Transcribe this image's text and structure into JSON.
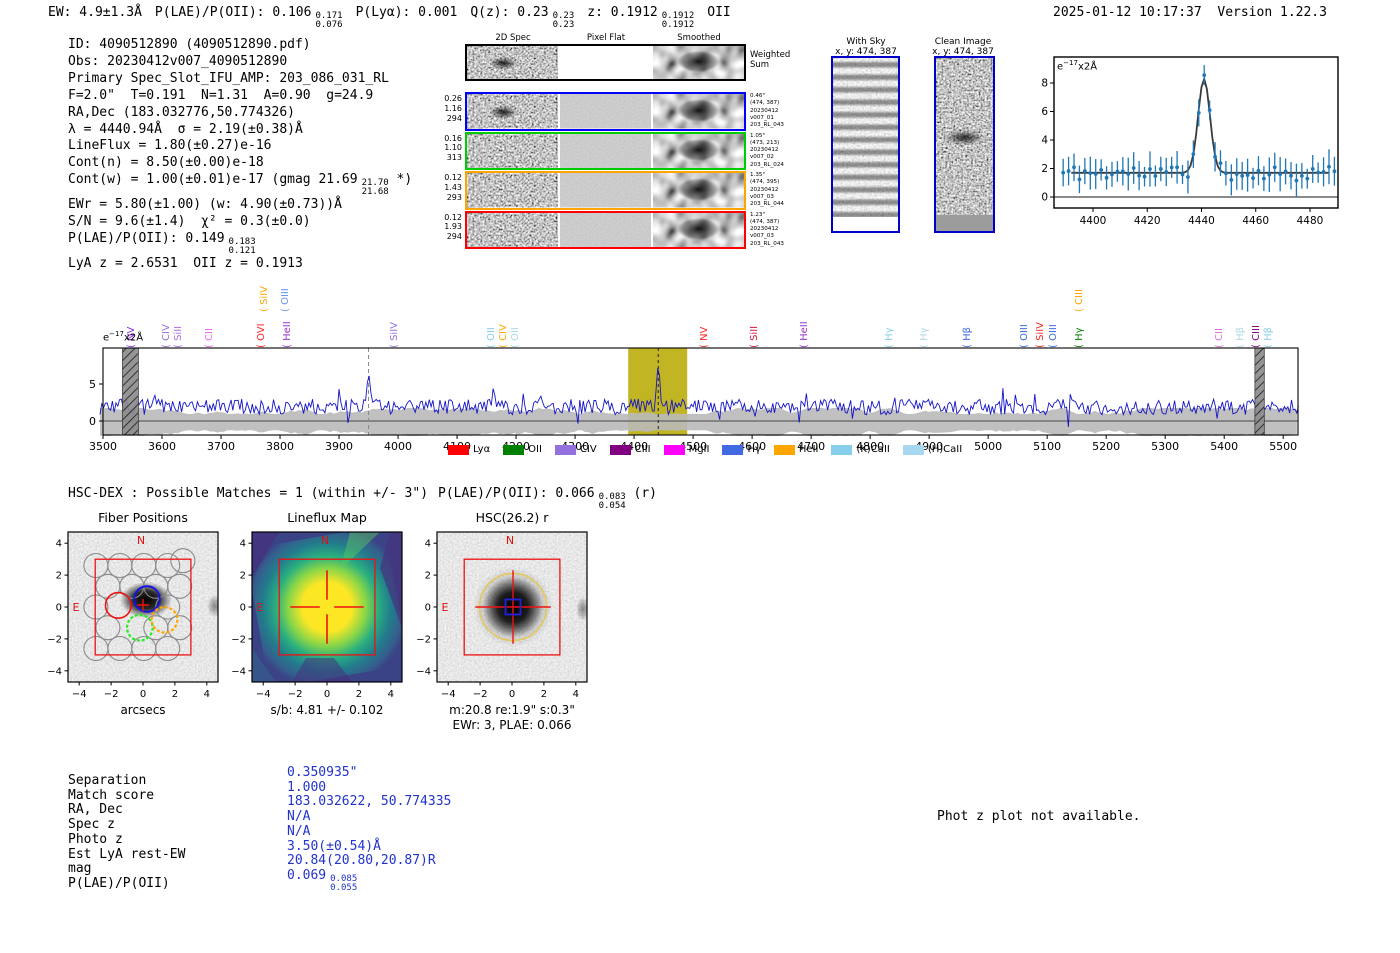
{
  "header": {
    "segments": [
      {
        "text": "EW: 4.9±1.3Å"
      },
      {
        "text": "P(LAE)/P(OII): 0.106",
        "hi": "0.171",
        "lo": "0.076"
      },
      {
        "text": "P(Lyα): 0.001"
      },
      {
        "text": "Q(z): 0.23",
        "hi": "0.23",
        "lo": "0.23"
      },
      {
        "text": "z: 0.1912",
        "hi": "0.1912",
        "lo": "0.1912"
      },
      {
        "text": "OII"
      }
    ],
    "timestamp": "2025-01-12 10:17:37",
    "version": "Version 1.22.3"
  },
  "info": {
    "lines": [
      {
        "text": "ID: 4090512890 (4090512890.pdf)"
      },
      {
        "text": "Obs: 20230412v007_4090512890"
      },
      {
        "text": "Primary Spec_Slot_IFU_AMP: 203_086_031_RL"
      },
      {
        "text": "F=2.0\"  T=0.191  N=1.31  A=0.90  g=24.9"
      },
      {
        "text": "RA,Dec (183.032776,50.774326)"
      },
      {
        "text": "λ = 4440.94Å  σ = 2.19(±0.38)Å"
      },
      {
        "text": "LineFlux = 1.80(±0.27)e-16"
      },
      {
        "text": "Cont(n) = 8.50(±0.00)e-18"
      },
      {
        "text": "Cont(w) = 1.00(±0.01)e-17 (gmag 21.69",
        "hi": "21.70",
        "lo": "21.68",
        "post": " *)"
      },
      {
        "text": "EWr = 5.80(±1.00) (w: 4.90(±0.73))Å"
      },
      {
        "text": "S/N = 9.6(±1.4)  χ² = 0.3(±0.0)"
      },
      {
        "text": "P(LAE)/P(OII): 0.149",
        "hi": "0.183",
        "lo": "0.121"
      },
      {
        "text": "LyA z = 2.6531  OII z = 0.1913"
      }
    ]
  },
  "spec2d": {
    "panel_headers": [
      "2D Spec",
      "Pixel Flat",
      "Smoothed"
    ],
    "weighted_label": "Weighted Sum",
    "rows": [
      {
        "border": "#0000ff",
        "left": [
          "0.26",
          "1.16",
          "294"
        ],
        "right": [
          "0.46\"",
          "(474, 387)",
          "20230412",
          "v007_01",
          "203_RL_043"
        ]
      },
      {
        "border": "#00cc00",
        "left": [
          "0.16",
          "1.10",
          "313"
        ],
        "right": [
          "1.05\"",
          "(473, 213)",
          "20230412",
          "v007_02",
          "203_RL_024"
        ]
      },
      {
        "border": "#ffa500",
        "left": [
          "0.12",
          "1.43",
          "293"
        ],
        "right": [
          "1.35\"",
          "(474, 395)",
          "20230412",
          "v007_03",
          "203_RL_044"
        ]
      },
      {
        "border": "#ff0000",
        "left": [
          "0.12",
          "1.93",
          "294"
        ],
        "right": [
          "1.23\"",
          "(474, 387)",
          "20230412",
          "v007_03",
          "203_RL_043"
        ]
      }
    ]
  },
  "skypanels": {
    "with_sky": {
      "title": "With Sky",
      "subtitle": "x, y: 474, 387"
    },
    "clean": {
      "title": "Clean Image",
      "subtitle": "x, y: 474, 387"
    }
  },
  "hsc_dex": {
    "segments": [
      {
        "text": "HSC-DEX : Possible Matches = 1 (within +/- 3\")"
      },
      {
        "text": "P(LAE)/P(OII): 0.066",
        "hi": "0.083",
        "lo": "0.054",
        "post": " (r)"
      }
    ]
  },
  "cutouts": {
    "ticks": [
      "−4",
      "−2",
      "0",
      "2",
      "4"
    ],
    "north": "N",
    "east": "E",
    "fiber": {
      "title": "Fiber Positions",
      "xlabel": "arcsecs"
    },
    "lineflux": {
      "title": "Lineflux Map",
      "xlabel": "s/b: 4.81 +/- 0.102"
    },
    "hsc": {
      "title": "HSC(26.2) r",
      "xlabel1": "m:20.8 re:1.9\" s:0.3\"",
      "xlabel2": "EWr: 3, PLAE: 0.066"
    }
  },
  "match_table": {
    "rows": [
      {
        "label": "Separation",
        "value": "0.350935\""
      },
      {
        "label": "Match score",
        "value": "1.000"
      },
      {
        "label": "RA, Dec",
        "value": "183.032622, 50.774335"
      },
      {
        "label": "Spec z",
        "value": "N/A"
      },
      {
        "label": "Photo z",
        "value": "N/A"
      },
      {
        "label": "Est LyA rest-EW",
        "value": "3.50(±0.54)Å"
      },
      {
        "label": "mag",
        "value": "20.84(20.80,20.87)R"
      },
      {
        "label": "P(LAE)/P(OII)",
        "value": "0.069",
        "hi": "0.085",
        "lo": "0.055"
      }
    ]
  },
  "footer_note": "Phot z plot not available.",
  "chart_data": [
    {
      "type": "line",
      "name": "emission_line_fit_inset",
      "annotation": {
        "prefix": "e",
        "sup": "−17",
        "suffix": "x2Å"
      },
      "x_ticks": [
        4400,
        4420,
        4440,
        4460,
        4480
      ],
      "y_ticks": [
        0,
        2,
        4,
        6,
        8
      ],
      "x_range": [
        4389,
        4489
      ],
      "baseline": 1.7,
      "noise_amp": 0.55,
      "err": 1.0,
      "gaussian": {
        "x": 4440.94,
        "amp": 6.6,
        "sigma": 2.19
      },
      "point_color": "#1f77b4",
      "fit_color": "#3a3a3a"
    },
    {
      "type": "line",
      "name": "full_spectrum",
      "ylabel": {
        "prefix": "e",
        "sup": "−17",
        "suffix": "x2Å"
      },
      "x_ticks": [
        3500,
        3600,
        3700,
        3800,
        3900,
        4000,
        4100,
        4200,
        4300,
        4400,
        4500,
        4600,
        4700,
        4800,
        4900,
        5000,
        5100,
        5200,
        5300,
        5400,
        5500
      ],
      "y_ticks": [
        0,
        5
      ],
      "x_range": [
        3495,
        5528
      ],
      "baseline": 1.9,
      "noise_amp": 1.05,
      "peaks": [
        {
          "x": 3950,
          "amp": 5.3,
          "sigma": 2.6
        },
        {
          "x": 4440.94,
          "amp": 6.3,
          "sigma": 2.4
        }
      ],
      "highlight_band": [
        4390,
        4490
      ],
      "masked_bands": [
        [
          3533,
          3560
        ],
        [
          5452,
          5468
        ]
      ],
      "dashed_lines": [
        3950,
        4440.94
      ],
      "line_color": "#1515c8",
      "band_color": "#b9b9b9",
      "highlight_color": "#bfb117",
      "legend": [
        {
          "label": "Lyα",
          "color": "#ff0000"
        },
        {
          "label": "OII",
          "color": "#008000"
        },
        {
          "label": "CIV",
          "color": "#9370db"
        },
        {
          "label": "CIII",
          "color": "#800080"
        },
        {
          "label": "MgII",
          "color": "#ff00ff"
        },
        {
          "label": "Hγ",
          "color": "#4169e1"
        },
        {
          "label": "HeII",
          "color": "#ffa500"
        },
        {
          "label": "(K)CaII",
          "color": "#87ceeb"
        },
        {
          "label": "(H)CaII",
          "color": "#a8d8ef"
        }
      ],
      "line_labels": [
        {
          "x": 3558,
          "label": "NV",
          "color": "#8a2be2",
          "row": 0
        },
        {
          "x": 3617,
          "label": "CIV",
          "color": "#9370db",
          "row": 0
        },
        {
          "x": 3638,
          "label": "SiII",
          "color": "#b06ae0",
          "row": 0
        },
        {
          "x": 3690,
          "label": "CII",
          "color": "#ee66ee",
          "row": 0
        },
        {
          "x": 3778,
          "label": "OVI",
          "color": "#ff2222",
          "row": 0
        },
        {
          "x": 3783,
          "label": "SiIV",
          "color": "#ffa500",
          "row": 1
        },
        {
          "x": 3818,
          "label": "OIII",
          "color": "#6495ed",
          "row": 1
        },
        {
          "x": 3822,
          "label": "HeII",
          "color": "#9932cc",
          "row": 0
        },
        {
          "x": 4003,
          "label": "SiIV",
          "color": "#9370db",
          "row": 0
        },
        {
          "x": 4168,
          "label": "OII",
          "color": "#87ceeb",
          "row": 0
        },
        {
          "x": 4188,
          "label": "CIV",
          "color": "#ffa500",
          "row": 0
        },
        {
          "x": 4208,
          "label": "OII",
          "color": "#add8e6",
          "row": 0
        },
        {
          "x": 4529,
          "label": "NV",
          "color": "#ff2222",
          "row": 0
        },
        {
          "x": 4613,
          "label": "SiII",
          "color": "#dc143c",
          "row": 0
        },
        {
          "x": 4698,
          "label": "HeII",
          "color": "#9932cc",
          "row": 0
        },
        {
          "x": 4842,
          "label": "Hγ",
          "color": "#87ceeb",
          "row": 0
        },
        {
          "x": 4902,
          "label": "Hγ",
          "color": "#add8e6",
          "row": 0
        },
        {
          "x": 4975,
          "label": "Hβ",
          "color": "#4169e1",
          "row": 0
        },
        {
          "x": 5071,
          "label": "OIII",
          "color": "#4169e1",
          "row": 0
        },
        {
          "x": 5098,
          "label": "SiIV",
          "color": "#ff2222",
          "row": 0
        },
        {
          "x": 5120,
          "label": "OIII",
          "color": "#4169e1",
          "row": 0
        },
        {
          "x": 5164,
          "label": "Hγ",
          "color": "#008000",
          "row": 0
        },
        {
          "x": 5164,
          "label": "CIII",
          "color": "#ffa500",
          "row": 1
        },
        {
          "x": 5401,
          "label": "CII",
          "color": "#da70d6",
          "row": 0
        },
        {
          "x": 5437,
          "label": "Hβ",
          "color": "#add8e6",
          "row": 0
        },
        {
          "x": 5464,
          "label": "CIII",
          "color": "#800080",
          "row": 0
        },
        {
          "x": 5484,
          "label": "Hβ",
          "color": "#87ceeb",
          "row": 0
        }
      ]
    }
  ]
}
